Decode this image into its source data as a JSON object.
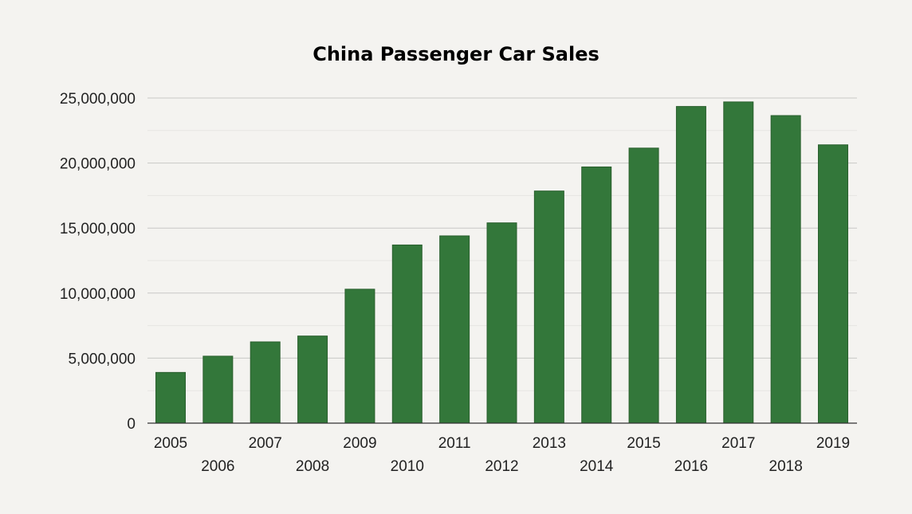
{
  "chart_data": {
    "type": "bar",
    "title": "China Passenger Car Sales",
    "xlabel": "",
    "ylabel": "",
    "categories": [
      "2005",
      "2006",
      "2007",
      "2008",
      "2009",
      "2010",
      "2011",
      "2012",
      "2013",
      "2014",
      "2015",
      "2016",
      "2017",
      "2018",
      "2019"
    ],
    "values": [
      3900000,
      5150000,
      6250000,
      6700000,
      10300000,
      13700000,
      14400000,
      15400000,
      17850000,
      19700000,
      21150000,
      24350000,
      24700000,
      23650000,
      21400000
    ],
    "ylim": [
      0,
      25000000
    ],
    "yticks": [
      "0",
      "5,000,000",
      "10,000,000",
      "15,000,000",
      "20,000,000",
      "25,000,000"
    ],
    "ytick_values": [
      0,
      5000000,
      10000000,
      15000000,
      20000000,
      25000000
    ],
    "grid": true,
    "legend": "none",
    "bar_color": "#33773a"
  }
}
